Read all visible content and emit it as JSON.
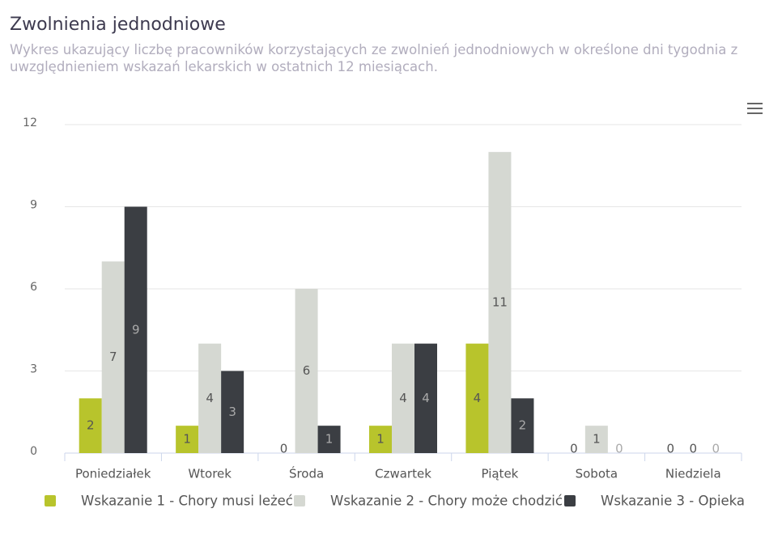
{
  "chart_data": {
    "type": "bar",
    "title": "Zwolnienia jednodniowe",
    "subtitle": "Wykres ukazujący liczbę pracowników korzystających ze zwolnień jednodniowych w określone dni tygodnia z uwzględnieniem wskazań lekarskich w ostatnich 12 miesiącach.",
    "categories": [
      "Poniedziałek",
      "Wtorek",
      "Środa",
      "Czwartek",
      "Piątek",
      "Sobota",
      "Niedziela"
    ],
    "series": [
      {
        "name": "Wskazanie 1 - Chory musi leżeć",
        "color": "#b8c42c",
        "values": [
          2,
          1,
          0,
          1,
          4,
          0,
          0
        ]
      },
      {
        "name": "Wskazanie 2 - Chory może chodzić",
        "color": "#d5d8d2",
        "values": [
          7,
          4,
          6,
          4,
          11,
          1,
          0
        ]
      },
      {
        "name": "Wskazanie 3 - Opieka",
        "color": "#3b3e43",
        "values": [
          9,
          3,
          1,
          4,
          2,
          0,
          0
        ]
      }
    ],
    "ylim": [
      0,
      12
    ],
    "yticks": [
      0,
      3,
      6,
      9,
      12
    ],
    "grid": true,
    "legend": "bottom",
    "data_labels": true
  }
}
